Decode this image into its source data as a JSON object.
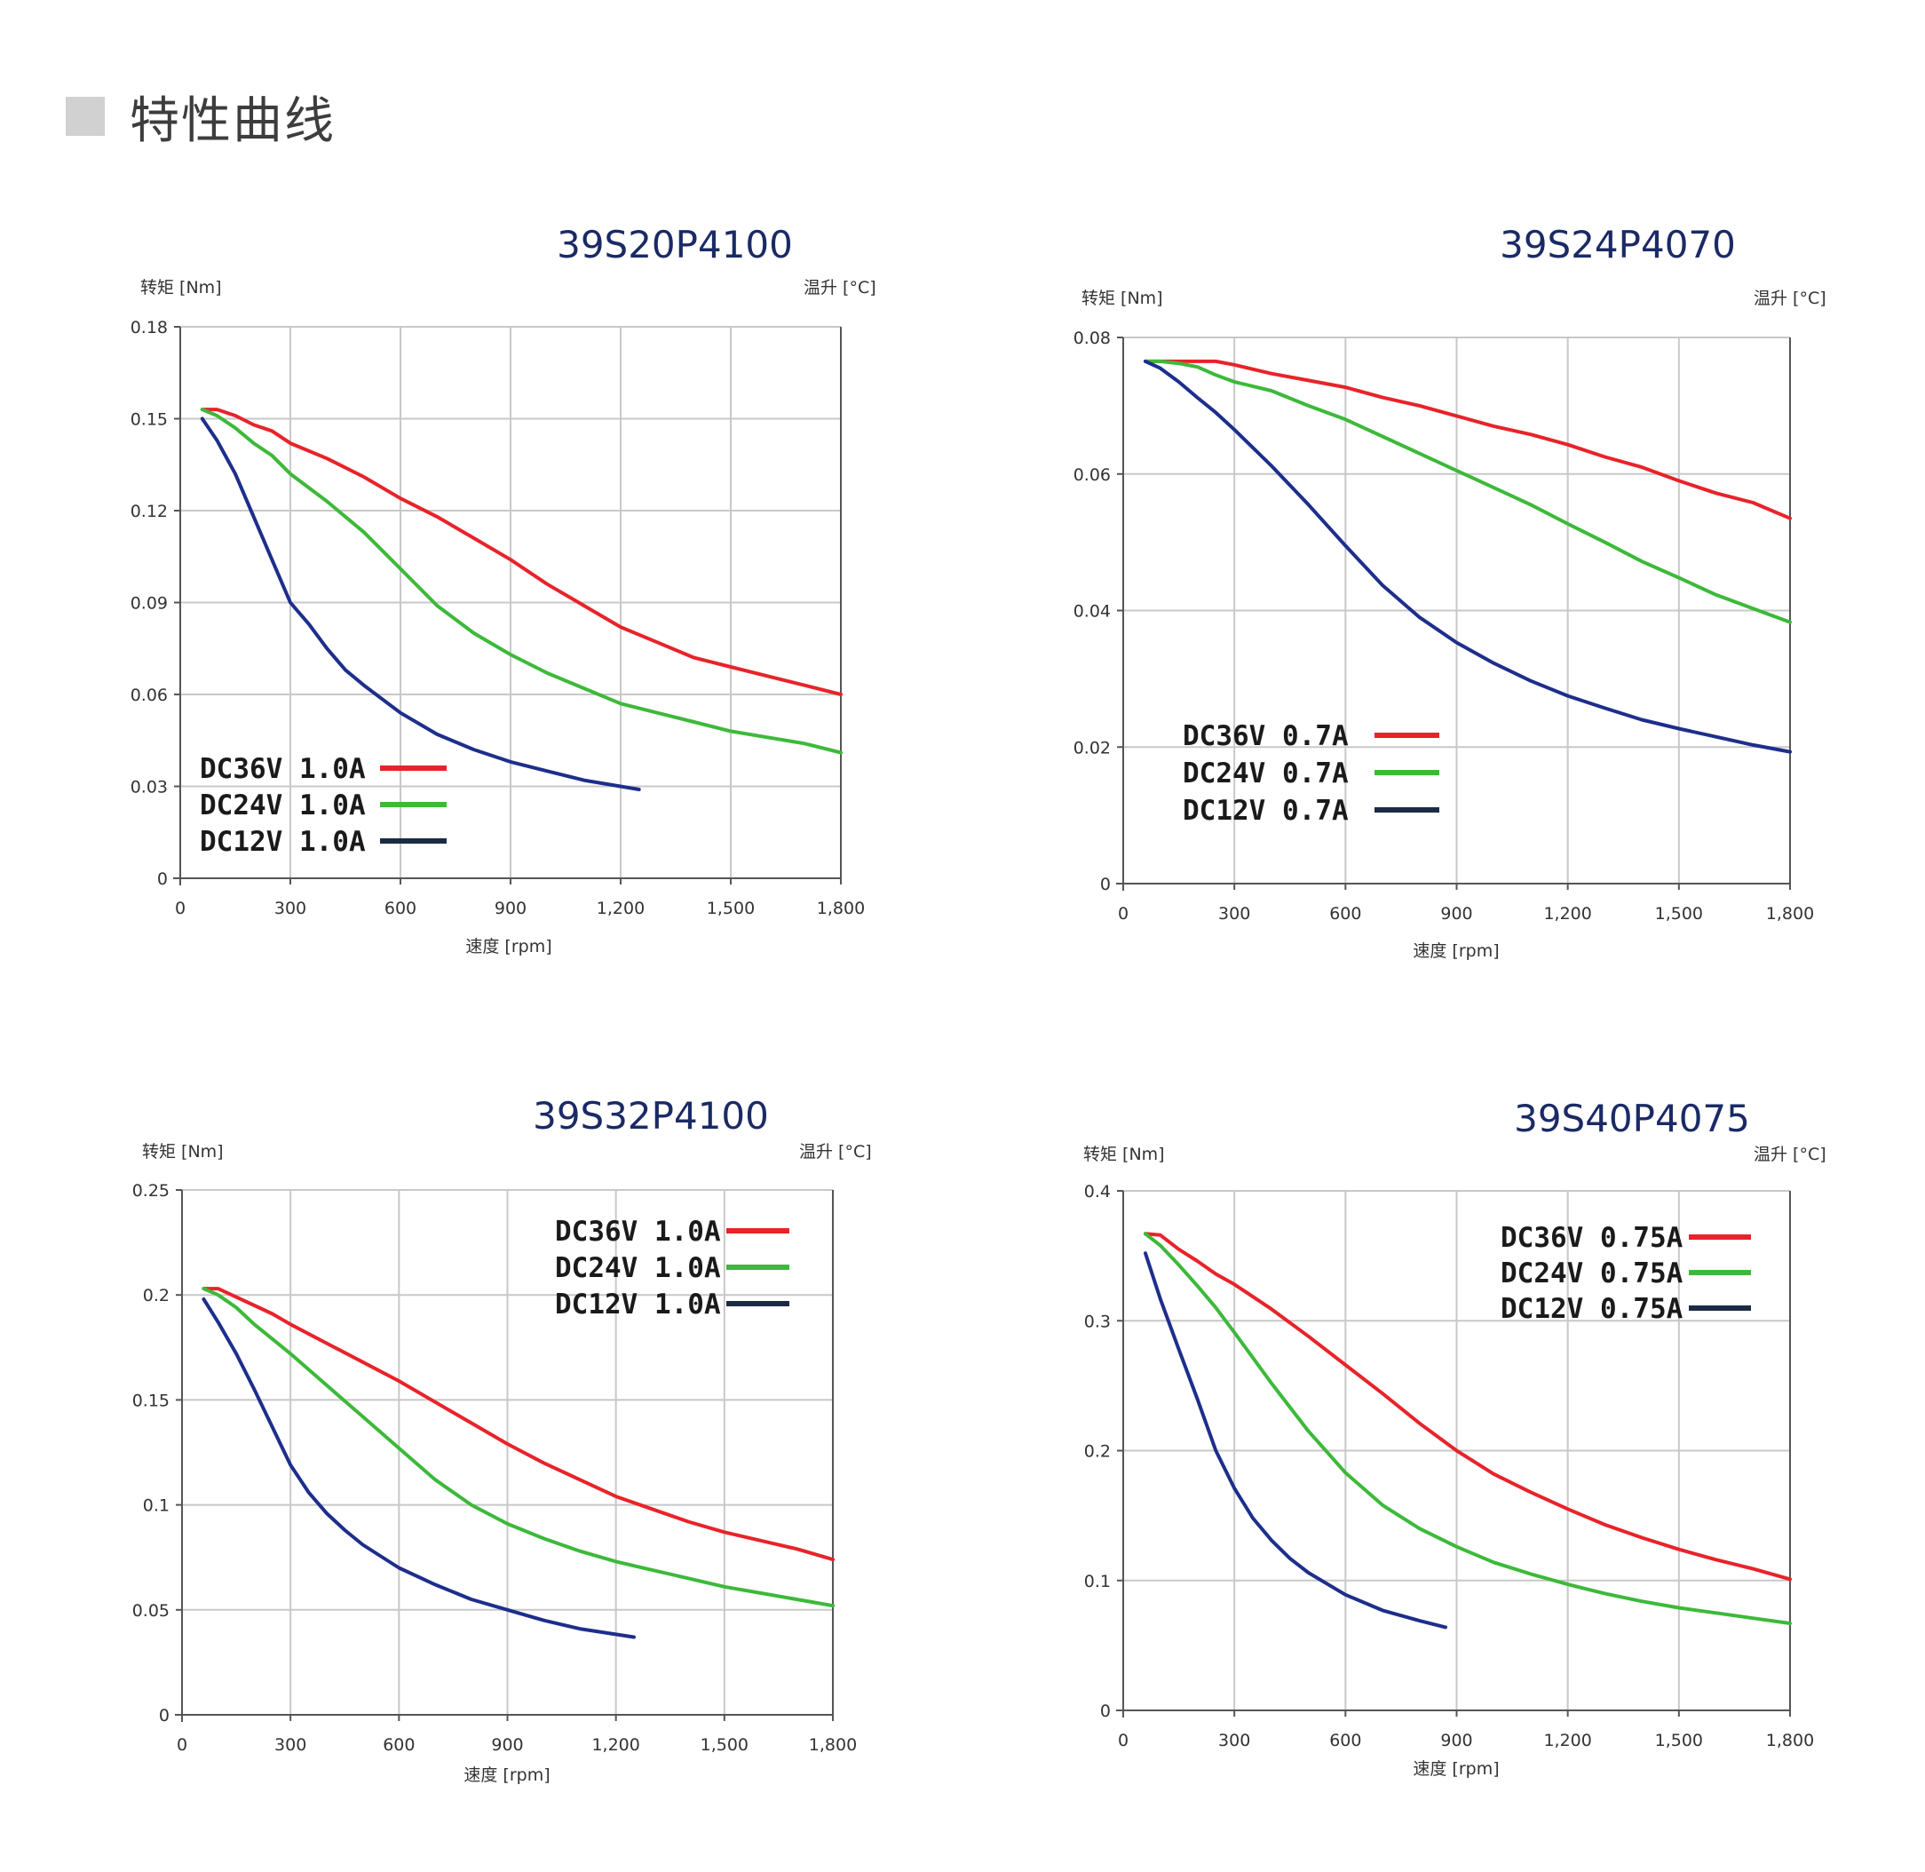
{
  "header": {
    "title": "特性曲线"
  },
  "colors": {
    "dc36": "#e8232a",
    "dc24": "#3db93a",
    "dc12": "#1d2e8c",
    "dc12_legend": "#1b2b45"
  },
  "chart_data": [
    {
      "type": "line",
      "title": "39S20P4100",
      "ylabel": "转矩 [Nm]",
      "y2label": "温升 [°C]",
      "xlabel": "速度 [rpm]",
      "xlim": [
        0,
        1800
      ],
      "ylim": [
        0,
        0.18
      ],
      "xticks": [
        0,
        300,
        600,
        900,
        1200,
        1500,
        1800
      ],
      "xtick_labels": [
        "0",
        "300",
        "600",
        "900",
        "1,200",
        "1,500",
        "1,800"
      ],
      "yticks": [
        0,
        0.03,
        0.06,
        0.09,
        0.12,
        0.15,
        0.18
      ],
      "ytick_labels": [
        "0",
        "0.03",
        "0.06",
        "0.09",
        "0.12",
        "0.15",
        "0.18"
      ],
      "legend_position": "bottom-left",
      "series": [
        {
          "name": "DC36V 1.0A",
          "color": "#e8232a",
          "x": [
            60,
            100,
            150,
            200,
            250,
            300,
            400,
            500,
            600,
            700,
            800,
            900,
            1000,
            1100,
            1200,
            1300,
            1400,
            1500,
            1600,
            1700,
            1800
          ],
          "y": [
            0.153,
            0.153,
            0.151,
            0.148,
            0.146,
            0.142,
            0.137,
            0.131,
            0.124,
            0.118,
            0.111,
            0.104,
            0.096,
            0.089,
            0.082,
            0.077,
            0.072,
            0.069,
            0.066,
            0.063,
            0.06
          ]
        },
        {
          "name": "DC24V 1.0A",
          "color": "#3db93a",
          "x": [
            60,
            100,
            150,
            200,
            250,
            300,
            400,
            500,
            600,
            700,
            800,
            900,
            1000,
            1100,
            1200,
            1300,
            1400,
            1500,
            1600,
            1700,
            1800
          ],
          "y": [
            0.153,
            0.151,
            0.147,
            0.142,
            0.138,
            0.132,
            0.123,
            0.113,
            0.101,
            0.089,
            0.08,
            0.073,
            0.067,
            0.062,
            0.057,
            0.054,
            0.051,
            0.048,
            0.046,
            0.044,
            0.041
          ]
        },
        {
          "name": "DC12V 1.0A",
          "color": "#1d2e8c",
          "x": [
            60,
            100,
            150,
            200,
            250,
            300,
            350,
            400,
            450,
            500,
            600,
            700,
            800,
            900,
            1000,
            1100,
            1250
          ],
          "y": [
            0.15,
            0.143,
            0.132,
            0.118,
            0.104,
            0.09,
            0.083,
            0.075,
            0.068,
            0.063,
            0.054,
            0.047,
            0.042,
            0.038,
            0.035,
            0.032,
            0.029
          ]
        }
      ]
    },
    {
      "type": "line",
      "title": "39S24P4070",
      "ylabel": "转矩 [Nm]",
      "y2label": "温升 [°C]",
      "xlabel": "速度 [rpm]",
      "xlim": [
        0,
        1800
      ],
      "ylim": [
        0,
        0.08
      ],
      "xticks": [
        0,
        300,
        600,
        900,
        1200,
        1500,
        1800
      ],
      "xtick_labels": [
        "0",
        "300",
        "600",
        "900",
        "1,200",
        "1,500",
        "1,800"
      ],
      "yticks": [
        0,
        0.02,
        0.04,
        0.06,
        0.08
      ],
      "ytick_labels": [
        "0",
        "0.02",
        "0.04",
        "0.06",
        "0.08"
      ],
      "legend_position": "bottom-left",
      "series": [
        {
          "name": "DC36V 0.7A",
          "color": "#e8232a",
          "x": [
            60,
            100,
            150,
            200,
            250,
            300,
            400,
            500,
            600,
            700,
            800,
            900,
            1000,
            1100,
            1200,
            1300,
            1400,
            1500,
            1600,
            1700,
            1800
          ],
          "y": [
            0.0765,
            0.0765,
            0.0765,
            0.0765,
            0.0765,
            0.076,
            0.0747,
            0.0737,
            0.0727,
            0.0712,
            0.07,
            0.0685,
            0.067,
            0.0658,
            0.0643,
            0.0625,
            0.061,
            0.059,
            0.0572,
            0.0558,
            0.0535
          ]
        },
        {
          "name": "DC24V 0.7A",
          "color": "#3db93a",
          "x": [
            60,
            100,
            150,
            200,
            250,
            300,
            400,
            500,
            600,
            700,
            800,
            900,
            1000,
            1100,
            1200,
            1300,
            1400,
            1500,
            1600,
            1700,
            1800
          ],
          "y": [
            0.0765,
            0.0765,
            0.0762,
            0.0757,
            0.0745,
            0.0735,
            0.0722,
            0.07,
            0.068,
            0.0655,
            0.063,
            0.0605,
            0.058,
            0.0555,
            0.0527,
            0.05,
            0.0472,
            0.0448,
            0.0423,
            0.0403,
            0.0383
          ]
        },
        {
          "name": "DC12V 0.7A",
          "color": "#1d2e8c",
          "x": [
            60,
            100,
            150,
            200,
            250,
            300,
            400,
            500,
            600,
            700,
            800,
            900,
            1000,
            1100,
            1200,
            1300,
            1400,
            1500,
            1600,
            1700,
            1800
          ],
          "y": [
            0.0765,
            0.0755,
            0.0735,
            0.0712,
            0.069,
            0.0665,
            0.0612,
            0.0555,
            0.0495,
            0.0437,
            0.039,
            0.0353,
            0.0323,
            0.0297,
            0.0275,
            0.0257,
            0.024,
            0.0227,
            0.0215,
            0.0203,
            0.0193
          ]
        }
      ]
    },
    {
      "type": "line",
      "title": "39S32P4100",
      "ylabel": "转矩 [Nm]",
      "y2label": "温升 [°C]",
      "xlabel": "速度 [rpm]",
      "xlim": [
        0,
        1800
      ],
      "ylim": [
        0,
        0.25
      ],
      "xticks": [
        0,
        300,
        600,
        900,
        1200,
        1500,
        1800
      ],
      "xtick_labels": [
        "0",
        "300",
        "600",
        "900",
        "1,200",
        "1,500",
        "1,800"
      ],
      "yticks": [
        0,
        0.05,
        0.1,
        0.15,
        0.2,
        0.25
      ],
      "ytick_labels": [
        "0",
        "0.05",
        "0.1",
        "0.15",
        "0.2",
        "0.25"
      ],
      "legend_position": "top-right",
      "series": [
        {
          "name": "DC36V 1.0A",
          "color": "#e8232a",
          "x": [
            60,
            100,
            150,
            200,
            250,
            300,
            400,
            500,
            600,
            700,
            800,
            900,
            1000,
            1100,
            1200,
            1300,
            1400,
            1500,
            1600,
            1700,
            1800
          ],
          "y": [
            0.203,
            0.203,
            0.199,
            0.195,
            0.191,
            0.186,
            0.177,
            0.168,
            0.159,
            0.149,
            0.139,
            0.129,
            0.12,
            0.112,
            0.104,
            0.098,
            0.092,
            0.087,
            0.083,
            0.079,
            0.074
          ]
        },
        {
          "name": "DC24V 1.0A",
          "color": "#3db93a",
          "x": [
            60,
            100,
            150,
            200,
            250,
            300,
            400,
            500,
            600,
            700,
            800,
            900,
            1000,
            1100,
            1200,
            1300,
            1400,
            1500,
            1600,
            1700,
            1800
          ],
          "y": [
            0.203,
            0.2,
            0.194,
            0.186,
            0.179,
            0.172,
            0.157,
            0.142,
            0.127,
            0.112,
            0.1,
            0.091,
            0.084,
            0.078,
            0.073,
            0.069,
            0.065,
            0.061,
            0.058,
            0.055,
            0.052
          ]
        },
        {
          "name": "DC12V 1.0A",
          "color": "#1d2e8c",
          "x": [
            60,
            100,
            150,
            200,
            250,
            300,
            350,
            400,
            450,
            500,
            600,
            700,
            800,
            900,
            1000,
            1100,
            1250
          ],
          "y": [
            0.198,
            0.187,
            0.172,
            0.155,
            0.137,
            0.119,
            0.106,
            0.096,
            0.088,
            0.081,
            0.07,
            0.062,
            0.055,
            0.05,
            0.045,
            0.041,
            0.037
          ]
        }
      ]
    },
    {
      "type": "line",
      "title": "39S40P4075",
      "ylabel": "转矩 [Nm]",
      "y2label": "温升 [°C]",
      "xlabel": "速度 [rpm]",
      "xlim": [
        0,
        1800
      ],
      "ylim": [
        0,
        0.4
      ],
      "xticks": [
        0,
        300,
        600,
        900,
        1200,
        1500,
        1800
      ],
      "xtick_labels": [
        "0",
        "300",
        "600",
        "900",
        "1,200",
        "1,500",
        "1,800"
      ],
      "yticks": [
        0,
        0.1,
        0.2,
        0.3,
        0.4
      ],
      "ytick_labels": [
        "0",
        "0.1",
        "0.2",
        "0.3",
        "0.4"
      ],
      "legend_position": "top-right",
      "series": [
        {
          "name": "DC36V 0.75A",
          "color": "#e8232a",
          "x": [
            60,
            100,
            150,
            200,
            250,
            300,
            400,
            500,
            600,
            700,
            800,
            900,
            1000,
            1100,
            1200,
            1300,
            1400,
            1500,
            1600,
            1700,
            1800
          ],
          "y": [
            0.367,
            0.366,
            0.355,
            0.346,
            0.336,
            0.328,
            0.309,
            0.288,
            0.266,
            0.244,
            0.221,
            0.2,
            0.182,
            0.168,
            0.155,
            0.143,
            0.133,
            0.124,
            0.116,
            0.109,
            0.101
          ]
        },
        {
          "name": "DC24V 0.75A",
          "color": "#3db93a",
          "x": [
            60,
            100,
            150,
            200,
            250,
            300,
            400,
            500,
            600,
            700,
            800,
            900,
            1000,
            1100,
            1200,
            1300,
            1400,
            1500,
            1600,
            1700,
            1800
          ],
          "y": [
            0.367,
            0.358,
            0.343,
            0.327,
            0.31,
            0.291,
            0.252,
            0.215,
            0.183,
            0.158,
            0.14,
            0.126,
            0.114,
            0.105,
            0.097,
            0.09,
            0.084,
            0.079,
            0.075,
            0.071,
            0.067
          ]
        },
        {
          "name": "DC12V 0.75A",
          "color": "#1d2e8c",
          "x": [
            60,
            100,
            150,
            200,
            250,
            300,
            350,
            400,
            450,
            500,
            600,
            700,
            800,
            870
          ],
          "y": [
            0.352,
            0.317,
            0.278,
            0.24,
            0.2,
            0.171,
            0.148,
            0.131,
            0.117,
            0.106,
            0.089,
            0.077,
            0.069,
            0.064
          ]
        }
      ]
    }
  ]
}
